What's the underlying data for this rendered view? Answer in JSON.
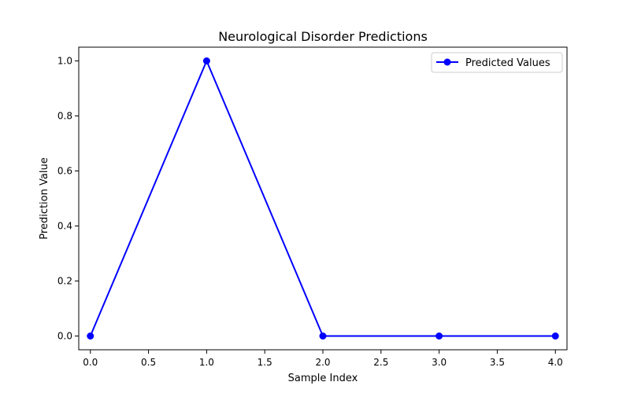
{
  "chart_data": {
    "type": "line",
    "title": "Neurological Disorder Predictions",
    "xlabel": "Sample Index",
    "ylabel": "Prediction Value",
    "xlim": [
      -0.1,
      4.1
    ],
    "ylim": [
      -0.05,
      1.05
    ],
    "x_ticks": [
      "0.0",
      "0.5",
      "1.0",
      "1.5",
      "2.0",
      "2.5",
      "3.0",
      "3.5",
      "4.0"
    ],
    "y_ticks": [
      "0.0",
      "0.2",
      "0.4",
      "0.6",
      "0.8",
      "1.0"
    ],
    "grid": false,
    "legend_position": "top-right",
    "series": [
      {
        "name": "Predicted Values",
        "color": "#0000ff",
        "marker": "circle",
        "x": [
          0,
          1,
          2,
          3,
          4
        ],
        "y": [
          0,
          1,
          0,
          0,
          0
        ]
      }
    ]
  }
}
